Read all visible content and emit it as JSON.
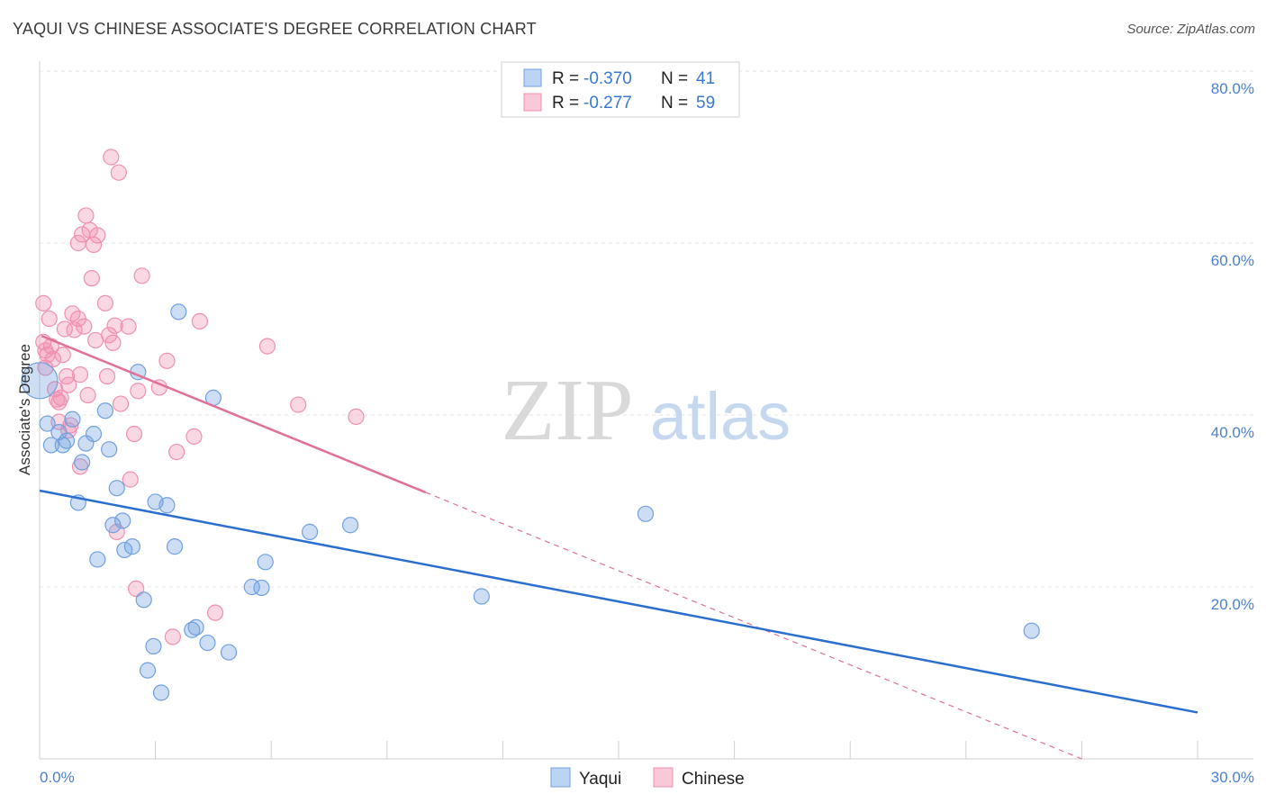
{
  "header": {
    "title": "YAQUI VS CHINESE ASSOCIATE'S DEGREE CORRELATION CHART",
    "source": "Source: ZipAtlas.com"
  },
  "watermark": {
    "zip": "ZIP",
    "atlas": "atlas"
  },
  "legend": {
    "rows": [
      {
        "r_label": "R =",
        "r_value": "-0.370",
        "n_label": "N =",
        "n_value": "41"
      },
      {
        "r_label": "R =",
        "r_value": "-0.277",
        "n_label": "N =",
        "n_value": "59"
      }
    ]
  },
  "bottom_legend": {
    "items": [
      "Yaqui",
      "Chinese"
    ]
  },
  "chart_data": {
    "type": "scatter",
    "title": "YAQUI VS CHINESE ASSOCIATE'S DEGREE CORRELATION CHART",
    "xlabel": "",
    "ylabel": "Associate's Degree",
    "xlim": [
      0,
      30
    ],
    "ylim": [
      0,
      80
    ],
    "x_tick_labels": [
      "0.0%",
      "30.0%"
    ],
    "y_tick_labels": [
      "20.0%",
      "40.0%",
      "60.0%",
      "80.0%"
    ],
    "y_ticks": [
      20,
      40,
      60,
      80
    ],
    "grid": true,
    "colors": {
      "yaqui": "#6fa0e0",
      "chinese": "#f08fb0",
      "yaqui_line": "#2a6fd0",
      "chinese_line": "#e0709a"
    },
    "series": [
      {
        "name": "Yaqui",
        "r": -0.37,
        "n": 41,
        "trend": {
          "x": [
            0,
            30
          ],
          "y": [
            31.2,
            5.4
          ]
        },
        "points": [
          [
            0.0,
            44.0
          ],
          [
            0.2,
            39.0
          ],
          [
            0.3,
            36.5
          ],
          [
            0.5,
            38.0
          ],
          [
            0.6,
            36.5
          ],
          [
            0.7,
            37.0
          ],
          [
            0.85,
            39.5
          ],
          [
            1.0,
            29.8
          ],
          [
            1.1,
            34.5
          ],
          [
            1.2,
            36.7
          ],
          [
            1.4,
            37.8
          ],
          [
            1.5,
            23.2
          ],
          [
            1.7,
            40.5
          ],
          [
            1.8,
            36.0
          ],
          [
            1.9,
            27.2
          ],
          [
            2.0,
            31.5
          ],
          [
            2.15,
            27.7
          ],
          [
            2.2,
            24.3
          ],
          [
            2.4,
            24.7
          ],
          [
            2.55,
            45.0
          ],
          [
            2.7,
            18.5
          ],
          [
            2.8,
            10.3
          ],
          [
            2.95,
            13.1
          ],
          [
            3.0,
            29.9
          ],
          [
            3.15,
            7.7
          ],
          [
            3.3,
            29.5
          ],
          [
            3.5,
            24.7
          ],
          [
            3.6,
            52.0
          ],
          [
            3.95,
            15.0
          ],
          [
            4.05,
            15.3
          ],
          [
            4.35,
            13.5
          ],
          [
            4.5,
            42.0
          ],
          [
            4.9,
            12.4
          ],
          [
            5.5,
            20.0
          ],
          [
            5.75,
            19.9
          ],
          [
            5.85,
            22.9
          ],
          [
            7.0,
            26.4
          ],
          [
            8.05,
            27.2
          ],
          [
            11.45,
            18.9
          ],
          [
            15.7,
            28.5
          ],
          [
            25.7,
            14.9
          ]
        ]
      },
      {
        "name": "Chinese",
        "r": -0.277,
        "n": 59,
        "trend": {
          "x": [
            0.05,
            10.0
          ],
          "y": [
            49.2,
            31.0
          ]
        },
        "trend_ext": {
          "x": [
            10.0,
            27.0
          ],
          "y": [
            31.0,
            0.0
          ]
        },
        "points": [
          [
            0.1,
            53.0
          ],
          [
            0.1,
            48.5
          ],
          [
            0.15,
            47.5
          ],
          [
            0.2,
            47.0
          ],
          [
            0.25,
            51.2
          ],
          [
            0.3,
            48.0
          ],
          [
            0.35,
            46.5
          ],
          [
            0.4,
            43.0
          ],
          [
            0.45,
            41.8
          ],
          [
            0.5,
            41.5
          ],
          [
            0.55,
            42.0
          ],
          [
            0.6,
            47.0
          ],
          [
            0.65,
            50.0
          ],
          [
            0.7,
            44.5
          ],
          [
            0.75,
            43.5
          ],
          [
            0.8,
            38.8
          ],
          [
            0.85,
            51.8
          ],
          [
            0.9,
            49.9
          ],
          [
            1.0,
            51.2
          ],
          [
            1.0,
            60.0
          ],
          [
            1.05,
            44.7
          ],
          [
            1.05,
            34.0
          ],
          [
            1.1,
            61.0
          ],
          [
            1.15,
            50.3
          ],
          [
            1.2,
            63.2
          ],
          [
            1.25,
            42.3
          ],
          [
            1.3,
            61.5
          ],
          [
            1.35,
            55.9
          ],
          [
            1.4,
            59.8
          ],
          [
            1.45,
            48.7
          ],
          [
            1.5,
            60.9
          ],
          [
            1.7,
            53.0
          ],
          [
            1.75,
            44.5
          ],
          [
            1.8,
            49.3
          ],
          [
            1.85,
            70.0
          ],
          [
            1.9,
            48.4
          ],
          [
            1.95,
            50.4
          ],
          [
            2.0,
            26.4
          ],
          [
            2.05,
            68.2
          ],
          [
            2.1,
            41.3
          ],
          [
            2.3,
            50.3
          ],
          [
            2.35,
            32.5
          ],
          [
            2.45,
            37.8
          ],
          [
            2.5,
            19.8
          ],
          [
            2.55,
            42.8
          ],
          [
            2.65,
            56.2
          ],
          [
            3.1,
            43.2
          ],
          [
            3.3,
            46.3
          ],
          [
            3.45,
            14.2
          ],
          [
            3.55,
            35.7
          ],
          [
            4.0,
            37.5
          ],
          [
            4.15,
            50.9
          ],
          [
            4.55,
            17.0
          ],
          [
            5.9,
            48.0
          ],
          [
            6.7,
            41.2
          ],
          [
            8.2,
            39.8
          ],
          [
            0.15,
            45.5
          ],
          [
            0.5,
            39.2
          ],
          [
            0.75,
            38.2
          ]
        ]
      }
    ]
  }
}
